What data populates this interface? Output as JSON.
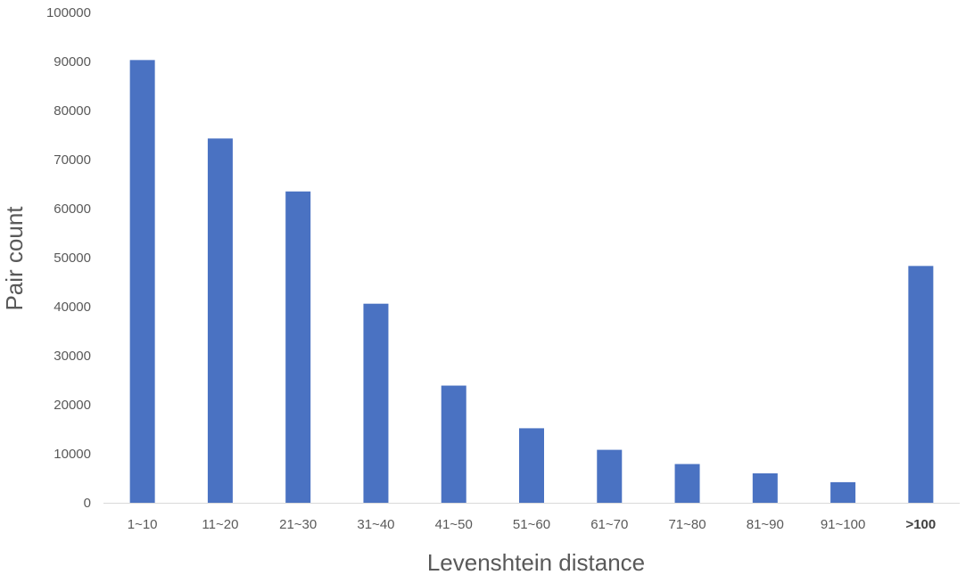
{
  "chart_data": {
    "type": "bar",
    "categories": [
      "1~10",
      "11~20",
      "21~30",
      "31~40",
      "41~50",
      "51~60",
      "61~70",
      "71~80",
      "81~90",
      "91~100",
      ">100"
    ],
    "values": [
      90300,
      74300,
      63500,
      40600,
      23900,
      15200,
      10800,
      7900,
      6000,
      4200,
      48300
    ],
    "xlabel": "Levenshtein distance",
    "ylabel": "Pair count",
    "ylim": [
      0,
      100000
    ],
    "yticks": [
      "0",
      "10000",
      "20000",
      "30000",
      "40000",
      "50000",
      "60000",
      "70000",
      "80000",
      "90000",
      "100000"
    ],
    "grid": false,
    "bar_color": "#4a72c2"
  }
}
